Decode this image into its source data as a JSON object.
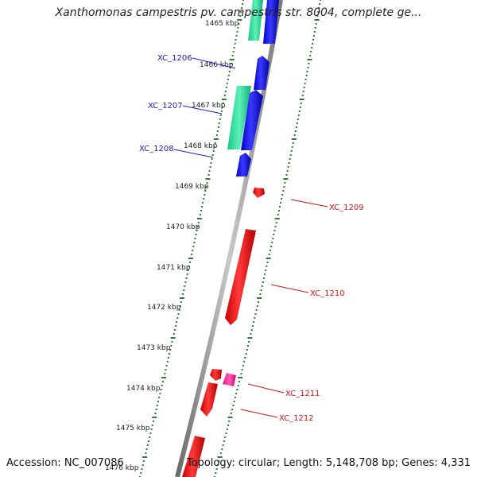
{
  "title": "Xanthomonas campestris pv. campestris str. 8004, complete ge...",
  "footer": {
    "accession": "Accession: NC_007086",
    "topology": "Topology: circular; Length: 5,148,708 bp; Genes: 4,331"
  },
  "colors": {
    "backbone": "#8c8c8c",
    "tick": "#2e7d32",
    "cds_reverse": "#1a1aff",
    "cds_forward": "#ff1a1a",
    "rna": "#33e6a0",
    "pink": "#ff33aa",
    "label_reverse": "#1a1acc",
    "label_forward": "#dd1111"
  },
  "kbp_labels": [
    "1465 kbp",
    "1466 kbp",
    "1467 kbp",
    "1468 kbp",
    "1469 kbp",
    "1470 kbp",
    "1471 kbp",
    "1472 kbp",
    "1473 kbp",
    "1474 kbp",
    "1475 kbp",
    "1476 kbp"
  ],
  "gene_labels": [
    {
      "text": "XC_1206",
      "strand": "reverse"
    },
    {
      "text": "XC_1207",
      "strand": "reverse"
    },
    {
      "text": "XC_1208",
      "strand": "reverse"
    },
    {
      "text": "XC_1209",
      "strand": "forward"
    },
    {
      "text": "XC_1210",
      "strand": "forward"
    },
    {
      "text": "XC_1211",
      "strand": "forward"
    },
    {
      "text": "XC_1212",
      "strand": "forward"
    }
  ]
}
